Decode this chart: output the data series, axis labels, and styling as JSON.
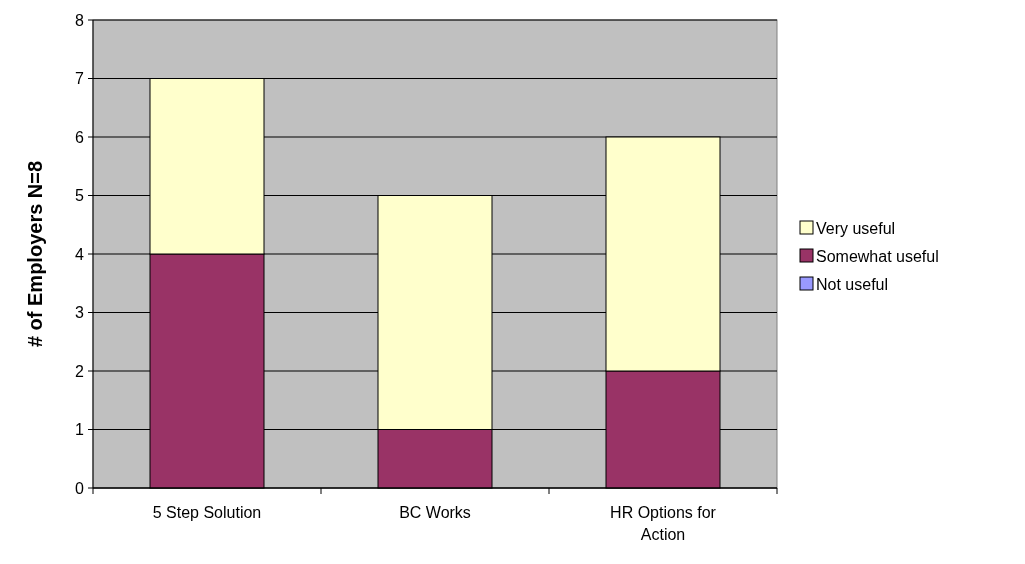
{
  "chart_data": {
    "type": "bar",
    "stacked": true,
    "ylabel": "# of Employers   N=8",
    "categories": [
      "5 Step Solution",
      "BC Works",
      "HR Options for Action"
    ],
    "series": [
      {
        "name": "Not useful",
        "color": "#9999ff",
        "values": [
          0,
          0,
          0
        ]
      },
      {
        "name": "Somewhat useful",
        "color": "#993366",
        "values": [
          4,
          1,
          2
        ]
      },
      {
        "name": "Very useful",
        "color": "#ffffcc",
        "values": [
          3,
          4,
          4
        ]
      }
    ],
    "ylim": [
      0,
      8
    ],
    "yticks": [
      0,
      1,
      2,
      3,
      4,
      5,
      6,
      7,
      8
    ],
    "grid": "y",
    "legend": "right"
  }
}
